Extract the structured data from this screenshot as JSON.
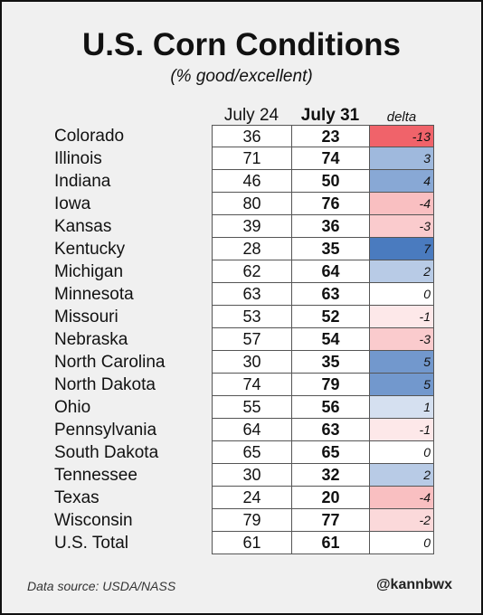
{
  "chart_data": {
    "type": "table",
    "title": "U.S. Corn Conditions",
    "subtitle": "(% good/excellent)",
    "columns": [
      "July 24",
      "July 31",
      "delta"
    ],
    "rows": [
      {
        "state": "Colorado",
        "july24": 36,
        "july31": 23,
        "delta": -13
      },
      {
        "state": "Illinois",
        "july24": 71,
        "july31": 74,
        "delta": 3
      },
      {
        "state": "Indiana",
        "july24": 46,
        "july31": 50,
        "delta": 4
      },
      {
        "state": "Iowa",
        "july24": 80,
        "july31": 76,
        "delta": -4
      },
      {
        "state": "Kansas",
        "july24": 39,
        "july31": 36,
        "delta": -3
      },
      {
        "state": "Kentucky",
        "july24": 28,
        "july31": 35,
        "delta": 7
      },
      {
        "state": "Michigan",
        "july24": 62,
        "july31": 64,
        "delta": 2
      },
      {
        "state": "Minnesota",
        "july24": 63,
        "july31": 63,
        "delta": 0
      },
      {
        "state": "Missouri",
        "july24": 53,
        "july31": 52,
        "delta": -1
      },
      {
        "state": "Nebraska",
        "july24": 57,
        "july31": 54,
        "delta": -3
      },
      {
        "state": "North Carolina",
        "july24": 30,
        "july31": 35,
        "delta": 5
      },
      {
        "state": "North Dakota",
        "july24": 74,
        "july31": 79,
        "delta": 5
      },
      {
        "state": "Ohio",
        "july24": 55,
        "july31": 56,
        "delta": 1
      },
      {
        "state": "Pennsylvania",
        "july24": 64,
        "july31": 63,
        "delta": -1
      },
      {
        "state": "South Dakota",
        "july24": 65,
        "july31": 65,
        "delta": 0
      },
      {
        "state": "Tennessee",
        "july24": 30,
        "july31": 32,
        "delta": 2
      },
      {
        "state": "Texas",
        "july24": 24,
        "july31": 20,
        "delta": -4
      },
      {
        "state": "Wisconsin",
        "july24": 79,
        "july31": 77,
        "delta": -2
      },
      {
        "state": "U.S. Total",
        "july24": 61,
        "july31": 61,
        "delta": 0
      }
    ],
    "colors": {
      "negative": "#f0636a",
      "positive": "#4a7bbf",
      "neutral": "#ffffff"
    }
  },
  "footer": {
    "source": "Data source: USDA/NASS",
    "handle": "@kannbwx"
  }
}
